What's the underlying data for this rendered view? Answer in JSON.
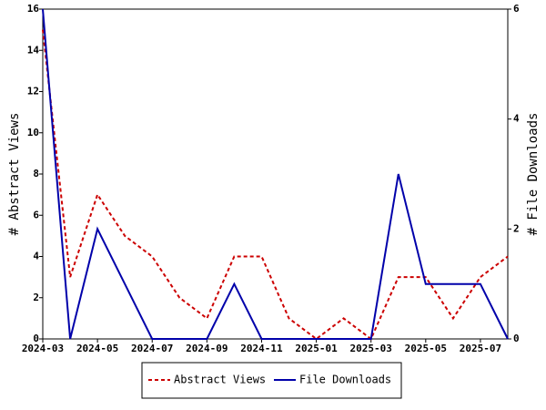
{
  "chart_data": {
    "type": "line",
    "categories": [
      "2024-03",
      null,
      "2024-05",
      null,
      "2024-07",
      null,
      "2024-09",
      null,
      "2024-11",
      null,
      "2025-01",
      null,
      "2025-03",
      null,
      "2025-05",
      null,
      "2025-07",
      null
    ],
    "y_label": "# Abstract Views",
    "y2_label": "# File Downloads",
    "ylim": [
      0,
      16
    ],
    "yticks": [
      0,
      2,
      4,
      6,
      8,
      10,
      12,
      14,
      16
    ],
    "y2lim": [
      0,
      6
    ],
    "y2ticks": [
      0,
      2,
      4,
      6
    ],
    "legend": "bottom",
    "series": [
      {
        "name": "Abstract Views",
        "color": "#cc0000",
        "dashed": true,
        "values": [
          15,
          3,
          7,
          5,
          4,
          2,
          1,
          4,
          4,
          1,
          0,
          1,
          0,
          3,
          3,
          1,
          3,
          4
        ]
      },
      {
        "name": "File Downloads",
        "color": "#0000aa",
        "axis": "y2",
        "values": [
          6,
          0,
          2,
          1,
          0,
          0,
          0,
          1,
          0,
          0,
          0,
          0,
          0,
          3,
          1,
          1,
          1,
          0
        ]
      }
    ]
  }
}
